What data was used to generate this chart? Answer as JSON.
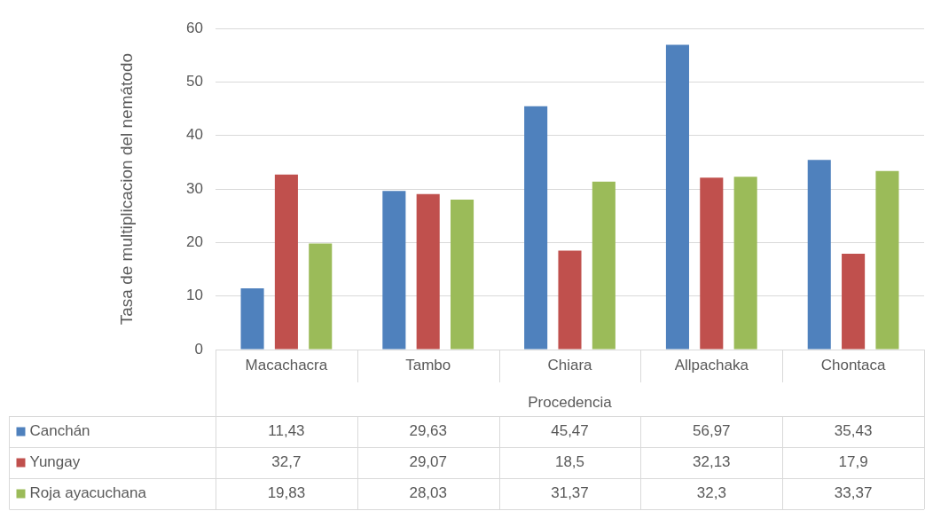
{
  "chart_data": {
    "type": "bar",
    "ylabel": "Tasa de multiplicacion del nemátodo",
    "xlabel": "Procedencia",
    "categories": [
      "Macachacra",
      "Tambo",
      "Chiara",
      "Allpachaka",
      "Chontaca"
    ],
    "series": [
      {
        "name": "Canchán",
        "color": "#4f81bd",
        "values": [
          11.43,
          29.63,
          45.47,
          56.97,
          35.43
        ],
        "value_labels": [
          "11,43",
          "29,63",
          "45,47",
          "56,97",
          "35,43"
        ]
      },
      {
        "name": "Yungay",
        "color": "#c0504d",
        "values": [
          32.7,
          29.07,
          18.5,
          32.13,
          17.9
        ],
        "value_labels": [
          "32,7",
          "29,07",
          "18,5",
          "32,13",
          "17,9"
        ]
      },
      {
        "name": "Roja ayacuchana",
        "color": "#9bbb59",
        "values": [
          19.83,
          28.03,
          31.37,
          32.3,
          33.37
        ],
        "value_labels": [
          "19,83",
          "28,03",
          "31,37",
          "32,3",
          "33,37"
        ]
      }
    ],
    "ylim": [
      0,
      60
    ],
    "yticks": [
      0,
      10,
      20,
      30,
      40,
      50,
      60
    ],
    "grid": "y",
    "legend": "bottom left"
  }
}
